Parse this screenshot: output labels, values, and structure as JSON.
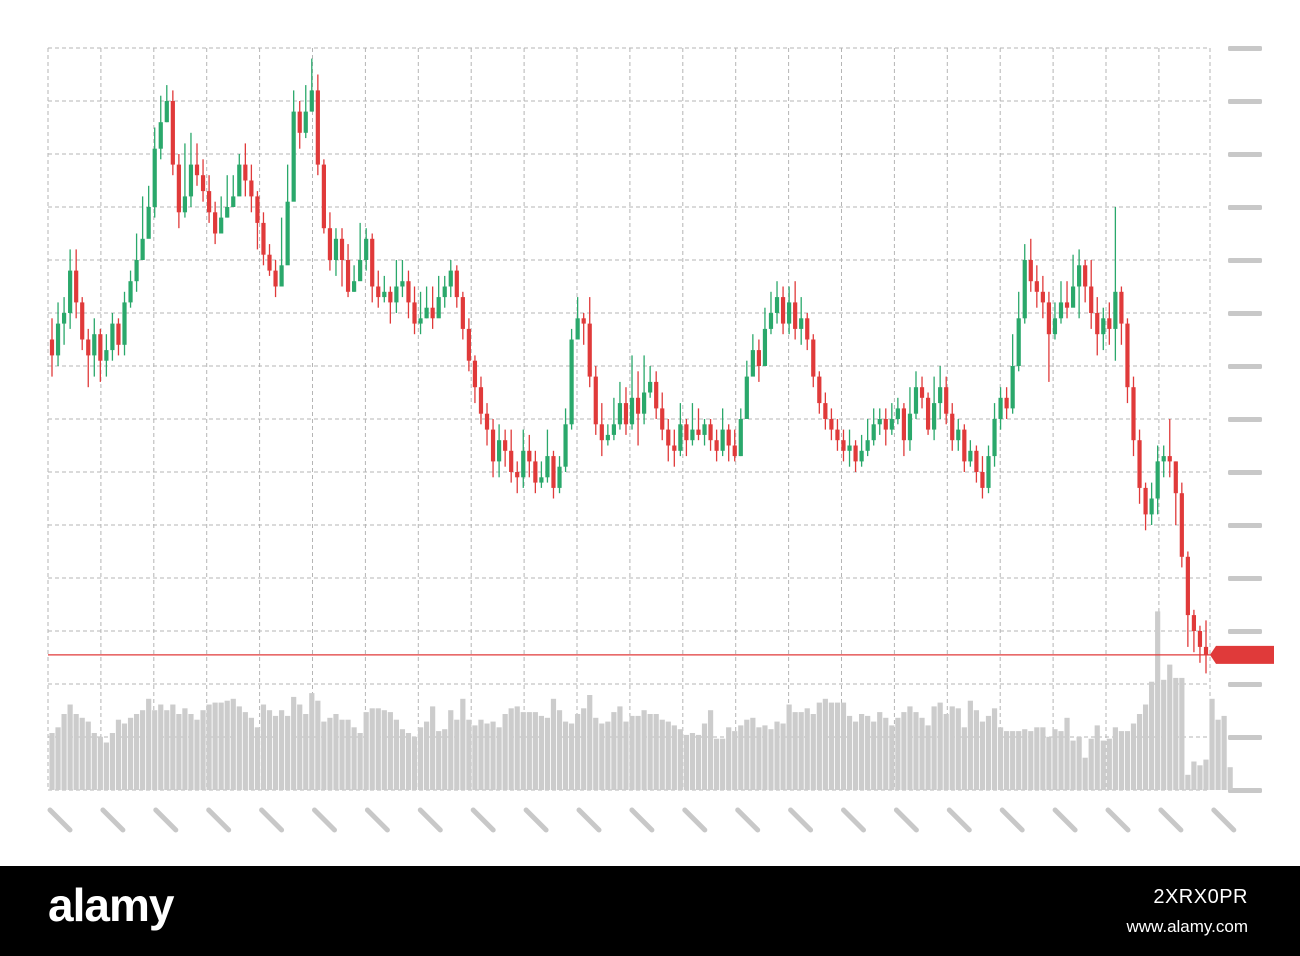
{
  "colors": {
    "up": "#2aa86b",
    "down": "#e03a3a",
    "volume": "#cccccc",
    "grid": "#b5b5b5",
    "axis_placeholder": "#c8c8c8",
    "price_line": "#e03a3a",
    "background": "#ffffff",
    "footer_bg": "#000000",
    "footer_text": "#ffffff"
  },
  "chart_data": {
    "type": "candlestick",
    "title": "",
    "xlabel": "",
    "ylabel": "",
    "grid": true,
    "axis_labels_shown": false,
    "ylim": [
      0,
      14
    ],
    "volume_ylim": [
      0,
      100
    ],
    "last_price": 2.55,
    "candles": [
      [
        8.5,
        8.2,
        8.9,
        7.8
      ],
      [
        8.2,
        8.8,
        9.2,
        8.0
      ],
      [
        8.8,
        9.0,
        9.3,
        8.4
      ],
      [
        9.0,
        9.8,
        10.2,
        8.7
      ],
      [
        9.8,
        9.2,
        10.2,
        8.9
      ],
      [
        9.2,
        8.5,
        9.3,
        8.3
      ],
      [
        8.5,
        8.2,
        8.7,
        7.6
      ],
      [
        8.2,
        8.6,
        8.9,
        7.8
      ],
      [
        8.6,
        8.1,
        8.7,
        7.7
      ],
      [
        8.1,
        8.3,
        8.6,
        7.8
      ],
      [
        8.3,
        8.8,
        9.0,
        8.1
      ],
      [
        8.8,
        8.4,
        8.9,
        8.2
      ],
      [
        8.4,
        9.2,
        9.4,
        8.2
      ],
      [
        9.2,
        9.6,
        9.8,
        9.1
      ],
      [
        9.6,
        10.0,
        10.5,
        9.4
      ],
      [
        10.0,
        10.4,
        11.2,
        10.2
      ],
      [
        10.4,
        11.0,
        11.4,
        10.5
      ],
      [
        11.0,
        12.1,
        12.5,
        10.8
      ],
      [
        12.1,
        12.6,
        13.1,
        11.9
      ],
      [
        12.6,
        13.0,
        13.3,
        12.6
      ],
      [
        13.0,
        11.8,
        13.2,
        11.6
      ],
      [
        11.8,
        10.9,
        12.0,
        10.6
      ],
      [
        10.9,
        11.2,
        12.2,
        10.8
      ],
      [
        11.2,
        11.8,
        12.4,
        11.0
      ],
      [
        11.8,
        11.6,
        12.2,
        11.4
      ],
      [
        11.6,
        11.3,
        11.9,
        11.1
      ],
      [
        11.3,
        10.9,
        11.6,
        10.7
      ],
      [
        10.9,
        10.5,
        11.1,
        10.3
      ],
      [
        10.5,
        10.8,
        11.2,
        10.5
      ],
      [
        10.8,
        11.0,
        11.6,
        10.8
      ],
      [
        11.0,
        11.2,
        11.6,
        11.0
      ],
      [
        11.2,
        11.8,
        12.0,
        11.4
      ],
      [
        11.8,
        11.5,
        12.2,
        11.2
      ],
      [
        11.5,
        11.2,
        11.8,
        10.9
      ],
      [
        11.2,
        10.7,
        11.3,
        10.2
      ],
      [
        10.7,
        10.1,
        10.9,
        9.9
      ],
      [
        10.1,
        9.8,
        10.3,
        9.7
      ],
      [
        9.8,
        9.5,
        10.0,
        9.3
      ],
      [
        9.5,
        9.9,
        10.8,
        9.8
      ],
      [
        9.9,
        11.1,
        11.8,
        10.7
      ],
      [
        11.1,
        12.8,
        13.2,
        12.4
      ],
      [
        12.8,
        12.4,
        13.0,
        12.1
      ],
      [
        12.4,
        12.8,
        13.3,
        12.3
      ],
      [
        12.8,
        13.2,
        13.8,
        12.8
      ],
      [
        13.2,
        11.8,
        13.5,
        11.6
      ],
      [
        11.8,
        10.6,
        11.9,
        10.5
      ],
      [
        10.6,
        10.0,
        10.9,
        9.8
      ],
      [
        10.0,
        10.4,
        10.6,
        9.7
      ],
      [
        10.4,
        10.0,
        10.6,
        9.5
      ],
      [
        10.0,
        9.4,
        10.3,
        9.3
      ],
      [
        9.4,
        9.6,
        9.9,
        9.4
      ],
      [
        9.6,
        10.0,
        10.7,
        9.9
      ],
      [
        10.0,
        10.4,
        10.6,
        9.8
      ],
      [
        10.4,
        9.5,
        10.5,
        9.2
      ],
      [
        9.5,
        9.3,
        9.8,
        9.1
      ],
      [
        9.3,
        9.4,
        9.7,
        9.2
      ],
      [
        9.4,
        9.2,
        9.5,
        8.8
      ],
      [
        9.2,
        9.5,
        10.0,
        9.0
      ],
      [
        9.5,
        9.6,
        10.0,
        9.3
      ],
      [
        9.6,
        9.2,
        9.8,
        8.9
      ],
      [
        9.2,
        8.8,
        9.5,
        8.6
      ],
      [
        8.8,
        8.9,
        9.4,
        8.6
      ],
      [
        8.9,
        9.1,
        9.5,
        8.9
      ],
      [
        9.1,
        8.9,
        9.5,
        8.7
      ],
      [
        8.9,
        9.3,
        9.7,
        9.2
      ],
      [
        9.3,
        9.5,
        9.7,
        9.1
      ],
      [
        9.5,
        9.8,
        10.0,
        9.3
      ],
      [
        9.8,
        9.3,
        9.9,
        9.1
      ],
      [
        9.3,
        8.7,
        9.4,
        8.5
      ],
      [
        8.7,
        8.1,
        8.9,
        7.9
      ],
      [
        8.1,
        7.6,
        8.2,
        7.3
      ],
      [
        7.6,
        7.1,
        7.8,
        6.9
      ],
      [
        7.1,
        6.8,
        7.3,
        6.5
      ],
      [
        6.8,
        6.2,
        7.0,
        5.9
      ],
      [
        6.2,
        6.6,
        6.9,
        5.9
      ],
      [
        6.6,
        6.4,
        6.8,
        6.1
      ],
      [
        6.4,
        6.0,
        6.8,
        5.8
      ],
      [
        6.0,
        5.9,
        6.2,
        5.6
      ],
      [
        5.9,
        6.4,
        6.8,
        5.7
      ],
      [
        6.4,
        6.2,
        6.7,
        5.9
      ],
      [
        6.2,
        5.8,
        6.4,
        5.6
      ],
      [
        5.8,
        5.9,
        6.2,
        5.7
      ],
      [
        5.9,
        6.3,
        6.8,
        5.8
      ],
      [
        6.3,
        5.7,
        6.4,
        5.5
      ],
      [
        5.7,
        6.1,
        6.3,
        5.6
      ],
      [
        6.1,
        6.9,
        7.2,
        6.0
      ],
      [
        6.9,
        8.5,
        8.7,
        6.8
      ],
      [
        8.5,
        8.9,
        9.3,
        8.7
      ],
      [
        8.9,
        8.8,
        9.0,
        8.4
      ],
      [
        8.8,
        7.8,
        9.3,
        7.6
      ],
      [
        7.8,
        6.9,
        8.0,
        6.7
      ],
      [
        6.9,
        6.6,
        7.3,
        6.3
      ],
      [
        6.6,
        6.7,
        6.9,
        6.5
      ],
      [
        6.7,
        6.9,
        7.4,
        6.6
      ],
      [
        6.9,
        7.3,
        7.7,
        6.8
      ],
      [
        7.3,
        6.9,
        7.6,
        6.7
      ],
      [
        6.9,
        7.4,
        8.2,
        6.8
      ],
      [
        7.4,
        7.1,
        7.9,
        6.5
      ],
      [
        7.1,
        7.5,
        8.2,
        6.9
      ],
      [
        7.5,
        7.7,
        8.0,
        7.4
      ],
      [
        7.7,
        7.2,
        7.9,
        7.0
      ],
      [
        7.2,
        6.8,
        7.5,
        6.6
      ],
      [
        6.8,
        6.5,
        7.0,
        6.2
      ],
      [
        6.5,
        6.4,
        6.8,
        6.1
      ],
      [
        6.4,
        6.9,
        7.3,
        6.3
      ],
      [
        6.9,
        6.6,
        7.0,
        6.3
      ],
      [
        6.6,
        6.8,
        7.3,
        6.5
      ],
      [
        6.8,
        6.7,
        7.2,
        6.6
      ],
      [
        6.7,
        6.9,
        7.0,
        6.5
      ],
      [
        6.9,
        6.6,
        7.0,
        6.4
      ],
      [
        6.6,
        6.4,
        6.8,
        6.2
      ],
      [
        6.4,
        6.8,
        7.2,
        6.3
      ],
      [
        6.8,
        6.5,
        6.9,
        6.2
      ],
      [
        6.5,
        6.3,
        6.8,
        6.2
      ],
      [
        6.3,
        7.0,
        7.2,
        6.3
      ],
      [
        7.0,
        7.8,
        8.1,
        7.0
      ],
      [
        7.8,
        8.3,
        8.6,
        7.9
      ],
      [
        8.3,
        8.0,
        8.5,
        7.7
      ],
      [
        8.0,
        8.7,
        9.1,
        8.0
      ],
      [
        8.7,
        9.0,
        9.4,
        8.6
      ],
      [
        9.0,
        9.3,
        9.6,
        8.8
      ],
      [
        9.3,
        8.8,
        9.5,
        8.6
      ],
      [
        8.8,
        9.2,
        9.5,
        8.6
      ],
      [
        9.2,
        8.7,
        9.6,
        8.5
      ],
      [
        8.7,
        8.9,
        9.3,
        8.4
      ],
      [
        8.9,
        8.5,
        9.0,
        8.3
      ],
      [
        8.5,
        7.8,
        8.6,
        7.6
      ],
      [
        7.8,
        7.3,
        7.9,
        7.1
      ],
      [
        7.3,
        7.0,
        7.5,
        6.8
      ],
      [
        7.0,
        6.8,
        7.2,
        6.6
      ],
      [
        6.8,
        6.6,
        7.0,
        6.4
      ],
      [
        6.6,
        6.4,
        6.8,
        6.2
      ],
      [
        6.4,
        6.5,
        6.8,
        6.1
      ],
      [
        6.5,
        6.2,
        6.6,
        6.0
      ],
      [
        6.2,
        6.4,
        6.7,
        6.1
      ],
      [
        6.4,
        6.6,
        7.0,
        6.3
      ],
      [
        6.6,
        6.9,
        7.2,
        6.5
      ],
      [
        6.9,
        7.0,
        7.2,
        6.7
      ],
      [
        7.0,
        6.8,
        7.2,
        6.5
      ],
      [
        6.8,
        7.0,
        7.3,
        6.7
      ],
      [
        7.0,
        7.2,
        7.4,
        6.9
      ],
      [
        7.2,
        6.6,
        7.3,
        6.3
      ],
      [
        6.6,
        7.1,
        7.6,
        6.4
      ],
      [
        7.1,
        7.6,
        7.9,
        7.0
      ],
      [
        7.6,
        7.4,
        7.8,
        7.2
      ],
      [
        7.4,
        6.8,
        7.5,
        6.7
      ],
      [
        6.8,
        7.3,
        7.8,
        6.6
      ],
      [
        7.3,
        7.6,
        8.0,
        7.0
      ],
      [
        7.6,
        7.1,
        7.8,
        6.9
      ],
      [
        7.1,
        6.6,
        7.3,
        6.4
      ],
      [
        6.6,
        6.8,
        7.0,
        6.4
      ],
      [
        6.8,
        6.2,
        6.9,
        6.0
      ],
      [
        6.2,
        6.4,
        6.6,
        6.1
      ],
      [
        6.4,
        6.0,
        6.5,
        5.8
      ],
      [
        6.0,
        5.7,
        6.3,
        5.5
      ],
      [
        5.7,
        6.3,
        6.5,
        5.6
      ],
      [
        6.3,
        7.0,
        7.3,
        6.1
      ],
      [
        7.0,
        7.4,
        7.6,
        6.8
      ],
      [
        7.4,
        7.2,
        7.6,
        7.0
      ],
      [
        7.2,
        8.0,
        8.6,
        7.1
      ],
      [
        8.0,
        8.9,
        9.4,
        7.9
      ],
      [
        8.9,
        10.0,
        10.3,
        8.8
      ],
      [
        10.0,
        9.6,
        10.4,
        9.4
      ],
      [
        9.6,
        9.4,
        9.9,
        9.1
      ],
      [
        9.4,
        9.2,
        9.7,
        8.9
      ],
      [
        9.2,
        8.6,
        9.4,
        7.7
      ],
      [
        8.6,
        8.9,
        9.2,
        8.5
      ],
      [
        8.9,
        9.2,
        9.6,
        8.8
      ],
      [
        9.2,
        9.1,
        9.6,
        8.9
      ],
      [
        9.1,
        9.5,
        10.1,
        9.2
      ],
      [
        9.5,
        9.9,
        10.2,
        8.9
      ],
      [
        9.9,
        9.5,
        10.0,
        9.2
      ],
      [
        9.5,
        9.0,
        10.0,
        8.7
      ],
      [
        9.0,
        8.6,
        9.3,
        8.2
      ],
      [
        8.6,
        8.9,
        9.1,
        8.3
      ],
      [
        8.9,
        8.7,
        9.2,
        8.4
      ],
      [
        8.7,
        9.4,
        11.0,
        8.1
      ],
      [
        9.4,
        8.8,
        9.5,
        8.4
      ],
      [
        8.8,
        7.6,
        8.9,
        7.3
      ],
      [
        7.6,
        6.6,
        7.8,
        6.3
      ],
      [
        6.6,
        5.7,
        6.8,
        5.4
      ],
      [
        5.7,
        5.2,
        5.8,
        4.9
      ],
      [
        5.2,
        5.5,
        5.8,
        5.0
      ],
      [
        5.5,
        6.2,
        6.5,
        5.2
      ],
      [
        6.2,
        6.3,
        6.5,
        5.9
      ],
      [
        6.3,
        6.2,
        7.0,
        5.9
      ],
      [
        6.2,
        5.6,
        6.2,
        5.0
      ],
      [
        5.6,
        4.4,
        5.8,
        4.2
      ],
      [
        4.4,
        3.3,
        4.5,
        2.7
      ],
      [
        3.3,
        3.0,
        3.4,
        2.6
      ],
      [
        3.0,
        2.7,
        3.1,
        2.4
      ],
      [
        2.7,
        2.55,
        3.2,
        2.2
      ]
    ],
    "volume": [
      30,
      33,
      40,
      45,
      40,
      38,
      36,
      30,
      28,
      25,
      30,
      37,
      35,
      38,
      40,
      42,
      48,
      42,
      45,
      42,
      45,
      40,
      43,
      40,
      37,
      42,
      45,
      46,
      46,
      47,
      48,
      44,
      41,
      38,
      33,
      45,
      42,
      39,
      42,
      39,
      49,
      45,
      40,
      51,
      47,
      36,
      38,
      40,
      37,
      37,
      33,
      30,
      41,
      43,
      43,
      42,
      41,
      37,
      32,
      30,
      28,
      33,
      36,
      44,
      31,
      32,
      42,
      37,
      48,
      37,
      34,
      37,
      35,
      36,
      33,
      40,
      43,
      44,
      41,
      41,
      41,
      39,
      38,
      48,
      42,
      36,
      35,
      40,
      43,
      50,
      38,
      35,
      36,
      41,
      44,
      36,
      39,
      39,
      42,
      40,
      40,
      37,
      36,
      34,
      32,
      29,
      30,
      29,
      35,
      42,
      27,
      27,
      33,
      31,
      34,
      37,
      38,
      33,
      34,
      32,
      36,
      35,
      45,
      41,
      41,
      43,
      40,
      46,
      48,
      46,
      46,
      46,
      39,
      36,
      40,
      39,
      36,
      41,
      38,
      34,
      38,
      41,
      44,
      41,
      38,
      34,
      44,
      46,
      40,
      44,
      43,
      33,
      47,
      42,
      36,
      39,
      43,
      33,
      31,
      31,
      31,
      32,
      31,
      33,
      33,
      28,
      32,
      31,
      38,
      26,
      28,
      17,
      27,
      34,
      26,
      27,
      33,
      31,
      31,
      35,
      40,
      45,
      57,
      94,
      58,
      66,
      59,
      59,
      8,
      15,
      13,
      16,
      48,
      37,
      39,
      12
    ]
  },
  "watermark": {
    "logo": "alamy",
    "image_id": "2XRX0PR",
    "url": "www.alamy.com"
  }
}
